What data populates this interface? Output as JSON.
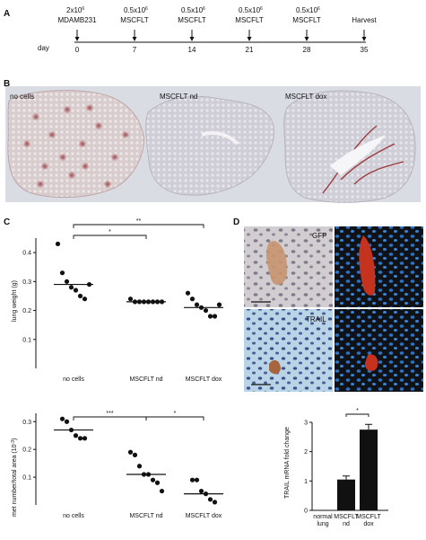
{
  "panels": {
    "A": "A",
    "B": "B",
    "C": "C",
    "D": "D"
  },
  "timeline": {
    "day_prefix": "day",
    "events": [
      {
        "day": "0",
        "line1": "2x10",
        "exp": "6",
        "line2": "MDAMB231"
      },
      {
        "day": "7",
        "line1": "0.5x10",
        "exp": "6",
        "line2": "MSCFLT"
      },
      {
        "day": "14",
        "line1": "0.5x10",
        "exp": "6",
        "line2": "MSCFLT"
      },
      {
        "day": "21",
        "line1": "0.5x10",
        "exp": "6",
        "line2": "MSCFLT"
      },
      {
        "day": "28",
        "line1": "0.5x10",
        "exp": "6",
        "line2": "MSCFLT"
      },
      {
        "day": "35",
        "line1": "",
        "exp": "",
        "line2": "Harvest"
      }
    ]
  },
  "histology": {
    "labels": [
      "no cells",
      "MSCFLT nd",
      "MSCFLT dox"
    ],
    "colors": {
      "background": "#d9dde3",
      "tissue": "#d7c6c6",
      "stain": "#8a2a2a"
    }
  },
  "chart_data": [
    {
      "type": "scatter",
      "title": "",
      "ylabel": "lung weight (g)",
      "ylim": [
        0,
        0.45
      ],
      "yticks": [
        "0.4",
        "0.3",
        "0.2",
        "0.1"
      ],
      "categories": [
        "no cells",
        "MSCFLT nd",
        "MSCFLT dox"
      ],
      "points": [
        [
          0.43,
          0.33,
          0.3,
          0.28,
          0.27,
          0.25,
          0.24,
          0.29
        ],
        [
          0.24,
          0.23,
          0.23,
          0.23,
          0.23,
          0.23,
          0.23,
          0.23
        ],
        [
          0.26,
          0.24,
          0.22,
          0.21,
          0.2,
          0.18,
          0.18,
          0.22
        ]
      ],
      "means": [
        0.29,
        0.23,
        0.21
      ],
      "significance": [
        {
          "from": 0,
          "to": 1,
          "label": "*"
        },
        {
          "from": 0,
          "to": 2,
          "label": "**"
        }
      ]
    },
    {
      "type": "scatter",
      "title": "",
      "ylabel": "met number/total area (10",
      "ylabel_exp": "-3",
      "ylabel_tail": ")",
      "ylim": [
        0,
        0.33
      ],
      "yticks": [
        "0.3",
        "0.2",
        "0.1"
      ],
      "categories": [
        "no cells",
        "MSCFLT nd",
        "MSCFLT dox"
      ],
      "points": [
        [
          0.31,
          0.3,
          0.27,
          0.25,
          0.24,
          0.24
        ],
        [
          0.19,
          0.18,
          0.14,
          0.11,
          0.11,
          0.09,
          0.08,
          0.05
        ],
        [
          0.09,
          0.09,
          0.05,
          0.04,
          0.02,
          0.01
        ]
      ],
      "means": [
        0.27,
        0.11,
        0.04
      ],
      "significance": [
        {
          "from": 0,
          "to": 1,
          "label": "***"
        },
        {
          "from": 1,
          "to": 2,
          "label": "*"
        }
      ]
    },
    {
      "type": "bar",
      "title": "",
      "ylabel": "TRAIL mRNA fold change",
      "ylim": [
        0,
        3
      ],
      "yticks": [
        "3",
        "2",
        "1",
        "0"
      ],
      "categories": [
        [
          "normal",
          "lung"
        ],
        [
          "MSCFLT",
          "nd"
        ],
        [
          "MSCFLT",
          "dox"
        ]
      ],
      "values": [
        0,
        1.05,
        2.75
      ],
      "errors": [
        0,
        0.12,
        0.18
      ],
      "significance": [
        {
          "from": 1,
          "to": 2,
          "label": "*"
        }
      ]
    }
  ],
  "microscopy": {
    "labels": [
      "GFP",
      "TRAIL"
    ],
    "colors": {
      "brightfield": "#c9c4c7",
      "ihc_bg": "#bcd6e6",
      "dark": "#101418",
      "nuclei": "#3a7fd0",
      "signal": "#c83a22"
    }
  }
}
